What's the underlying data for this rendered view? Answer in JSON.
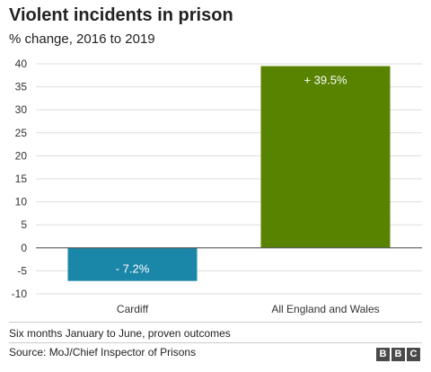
{
  "chart_data": {
    "type": "bar",
    "title": "Violent incidents in prison",
    "subtitle": "% change, 2016 to 2019",
    "categories": [
      "Cardiff",
      "All England and Wales"
    ],
    "values": [
      -7.2,
      39.5
    ],
    "value_labels": [
      "- 7.2%",
      "+ 39.5%"
    ],
    "bar_colors": [
      "#1a86a8",
      "#588300"
    ],
    "ylim": [
      -10,
      40
    ],
    "yticks": [
      40,
      35,
      30,
      25,
      20,
      15,
      10,
      5,
      0,
      -5,
      -10
    ],
    "grid": true,
    "legend": "none"
  },
  "note": "Six months January to June, proven outcomes",
  "source": "Source: MoJ/Chief Inspector of Prisons",
  "logo": [
    "B",
    "B",
    "C"
  ]
}
